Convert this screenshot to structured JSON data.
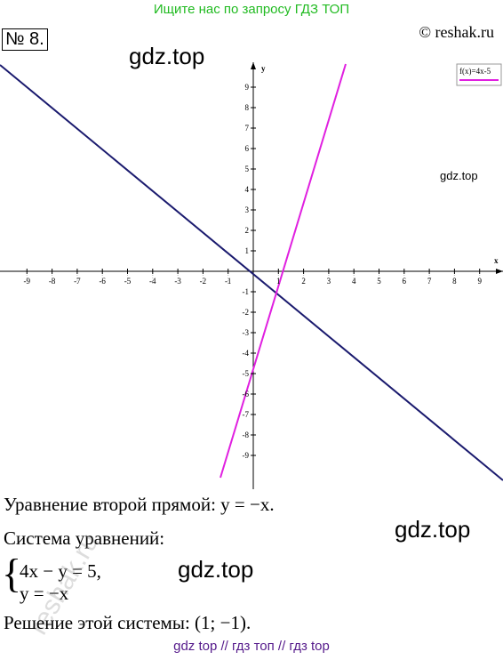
{
  "header": {
    "banner": "Ищите нас по запросу ГДЗ ТОП",
    "copyright": "© reshak.ru",
    "number": "№ 8."
  },
  "watermarks": [
    "gdz.top",
    "gdz.top",
    "gdz.top",
    "gdz.top",
    "reshak.ru"
  ],
  "graph": {
    "x_label": "x",
    "y_label": "y",
    "legend": "f(x)=4x-5",
    "xticks": [
      -9,
      -8,
      -7,
      -6,
      -5,
      -4,
      -3,
      -2,
      -1,
      1,
      2,
      3,
      4,
      5,
      6,
      7,
      8,
      9
    ],
    "yticks": [
      9,
      8,
      7,
      6,
      5,
      4,
      3,
      2,
      1,
      -1,
      -2,
      -3,
      -4,
      -5,
      -6,
      -7,
      -8,
      -9
    ]
  },
  "solution": {
    "line1": "Уравнение второй прямой:   y = −x.",
    "line2": "Система уравнений:",
    "system": [
      "4x − y = 5,",
      "y = −x"
    ],
    "line3": "Решение этой системы:  (1; −1)."
  },
  "footer": "gdz top  //  гдз топ  //  гдз top"
}
